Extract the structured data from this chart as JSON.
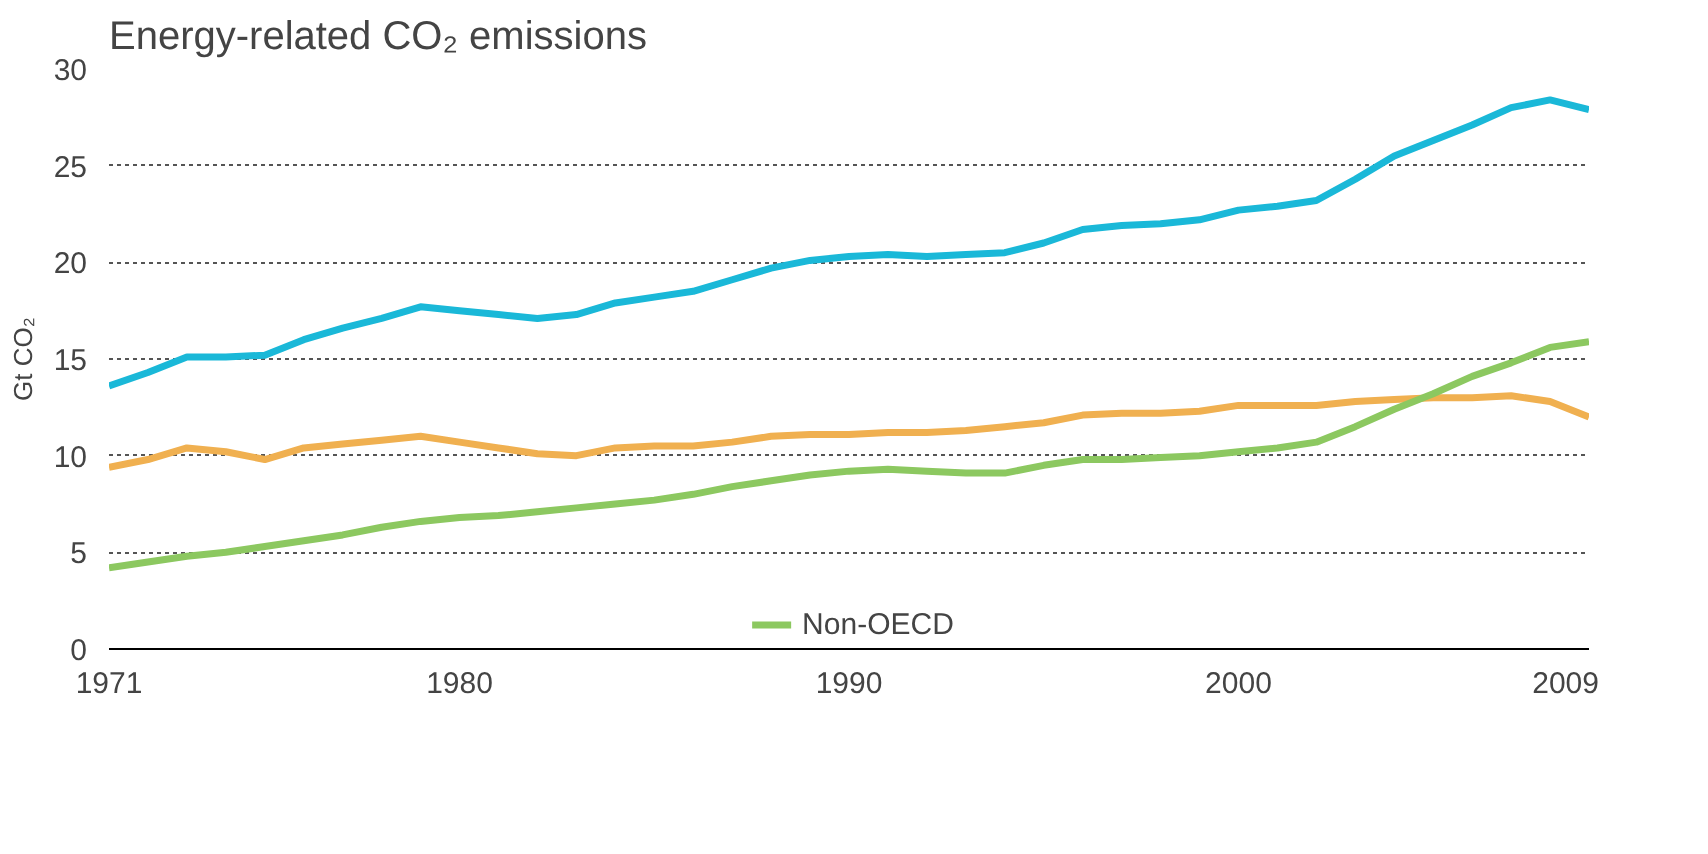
{
  "chart_data": {
    "type": "line",
    "title": "Energy-related CO₂ emissions",
    "ylabel": "Gt CO₂",
    "x": [
      1971,
      1972,
      1973,
      1974,
      1975,
      1976,
      1977,
      1978,
      1979,
      1980,
      1981,
      1982,
      1983,
      1984,
      1985,
      1986,
      1987,
      1988,
      1989,
      1990,
      1991,
      1992,
      1993,
      1994,
      1995,
      1996,
      1997,
      1998,
      1999,
      2000,
      2001,
      2002,
      2003,
      2004,
      2005,
      2006,
      2007,
      2008,
      2009
    ],
    "series": [
      {
        "color": "#1ab8d8",
        "values": [
          13.6,
          14.3,
          15.1,
          15.1,
          15.2,
          16.0,
          16.6,
          17.1,
          17.7,
          17.5,
          17.3,
          17.1,
          17.3,
          17.9,
          18.2,
          18.5,
          19.1,
          19.7,
          20.1,
          20.3,
          20.4,
          20.3,
          20.4,
          20.5,
          21.0,
          21.7,
          21.9,
          22.0,
          22.2,
          22.7,
          22.9,
          23.2,
          24.3,
          25.5,
          26.3,
          27.1,
          28.0,
          28.4,
          27.9
        ]
      },
      {
        "color": "#f0b050",
        "values": [
          9.4,
          9.8,
          10.4,
          10.2,
          9.8,
          10.4,
          10.6,
          10.8,
          11.0,
          10.7,
          10.4,
          10.1,
          10.0,
          10.4,
          10.5,
          10.5,
          10.7,
          11.0,
          11.1,
          11.1,
          11.2,
          11.2,
          11.3,
          11.5,
          11.7,
          12.1,
          12.2,
          12.2,
          12.3,
          12.6,
          12.6,
          12.6,
          12.8,
          12.9,
          13.0,
          13.0,
          13.1,
          12.8,
          12.0
        ]
      },
      {
        "name": "Non-OECD",
        "color": "#8cc860",
        "values": [
          4.2,
          4.5,
          4.8,
          5.0,
          5.3,
          5.6,
          5.9,
          6.3,
          6.6,
          6.8,
          6.9,
          7.1,
          7.3,
          7.5,
          7.7,
          8.0,
          8.4,
          8.7,
          9.0,
          9.2,
          9.3,
          9.2,
          9.1,
          9.1,
          9.5,
          9.8,
          9.8,
          9.9,
          10.0,
          10.2,
          10.4,
          10.7,
          11.5,
          12.4,
          13.2,
          14.1,
          14.8,
          15.6,
          15.9
        ]
      }
    ],
    "xlim": [
      1971,
      2009
    ],
    "ylim": [
      0,
      30
    ],
    "xticks": [
      1971,
      1980,
      1990,
      2000,
      2009
    ],
    "yticks": [
      0,
      5,
      10,
      15,
      20,
      25,
      30
    ],
    "grid": "y",
    "legend": "bottom",
    "line_style": "solid"
  }
}
